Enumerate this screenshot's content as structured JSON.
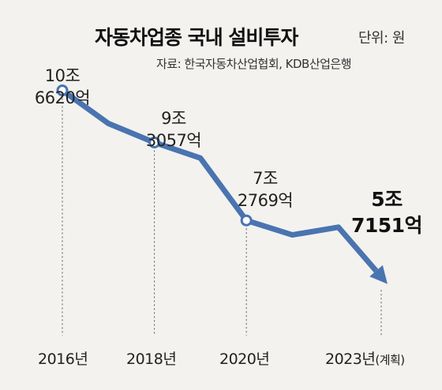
{
  "header": {
    "title": "자동차업종 국내 설비투자",
    "unit": "단위: 원",
    "source": "자료: 한국자동차산업협회, KDB산업은행"
  },
  "colors": {
    "line": "#4a74b0",
    "background": "#f3f2ef",
    "guide": "#555555"
  },
  "labels": [
    {
      "line1": "10조",
      "line2": "6620억"
    },
    {
      "line1": "9조",
      "line2": "3057억"
    },
    {
      "line1": "7조",
      "line2": "2769억"
    },
    {
      "line1": "5조",
      "line2": "7151억"
    }
  ],
  "years": [
    {
      "text": "2016년",
      "suffix": ""
    },
    {
      "text": "2018년",
      "suffix": ""
    },
    {
      "text": "2020년",
      "suffix": ""
    },
    {
      "text": "2023년",
      "suffix": "(계획)"
    }
  ],
  "chart_data": {
    "type": "line",
    "title": "자동차업종 국내 설비투자",
    "unit": "원",
    "x": [
      "2016",
      "2017",
      "2018",
      "2019",
      "2020",
      "2021",
      "2022",
      "2023"
    ],
    "series": [
      {
        "values": [
          10.662,
          9.8,
          9.3057,
          8.9,
          7.2769,
          6.9,
          7.1,
          5.7151
        ]
      }
    ],
    "value_unit": "조원",
    "labeled_points": [
      {
        "x": "2016",
        "value": 10.662,
        "label": "10조 6620억"
      },
      {
        "x": "2018",
        "value": 9.3057,
        "label": "9조 3057억"
      },
      {
        "x": "2020",
        "value": 7.2769,
        "label": "7조 2769억"
      },
      {
        "x": "2023",
        "value": 5.7151,
        "label": "5조 7151억",
        "note": "계획"
      }
    ],
    "ylim": [
      5.0,
      11.0
    ],
    "grid": false,
    "legend": "none"
  }
}
